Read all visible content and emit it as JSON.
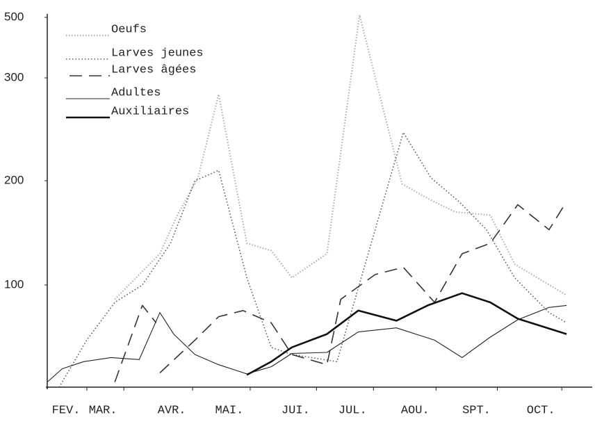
{
  "chart_data": {
    "type": "line",
    "xlim": [
      0,
      8.71
    ],
    "xticks": [
      {
        "value": 0.3,
        "label": "FEV."
      },
      {
        "value": 0.89,
        "label": "MAR."
      },
      {
        "value": 1.99,
        "label": "AVR."
      },
      {
        "value": 2.91,
        "label": "MAI."
      },
      {
        "value": 3.97,
        "label": "JUI."
      },
      {
        "value": 4.88,
        "label": "JUL."
      },
      {
        "value": 5.88,
        "label": "AOU."
      },
      {
        "value": 6.86,
        "label": "SPT."
      },
      {
        "value": 7.89,
        "label": "OCT."
      }
    ],
    "ylim": [
      0,
      510
    ],
    "yticks": [
      100,
      200,
      300,
      500
    ],
    "legend": "upper left",
    "series": [
      {
        "name": "Oeufs",
        "color": "#b0b0b0",
        "x": [
          1.08,
          1.52,
          1.8,
          2.08,
          2.41,
          2.74,
          3.19,
          3.58,
          3.91,
          4.47,
          4.99,
          5.67,
          6.08,
          6.52,
          7.08,
          7.47,
          8.3
        ],
        "values": [
          86,
          113,
          130,
          167,
          203,
          284,
          140,
          133,
          107,
          130,
          507,
          197,
          183,
          170,
          167,
          120,
          90
        ]
      },
      {
        "name": "Larves jeunes",
        "color": "#555555",
        "x": [
          0.19,
          0.63,
          1.08,
          1.52,
          1.97,
          2.36,
          2.74,
          3.19,
          3.58,
          3.91,
          4.63,
          5.24,
          5.69,
          6.13,
          6.58,
          7.02,
          7.47,
          8.02,
          8.3
        ],
        "values": [
          0,
          46,
          83,
          100,
          140,
          200,
          210,
          107,
          39,
          32,
          25,
          153,
          247,
          203,
          180,
          153,
          107,
          73,
          63
        ]
      },
      {
        "name": "Larves âgées",
        "color": "#333333",
        "x": [
          1.08,
          1.52,
          1.74,
          1.77,
          1.8,
          2.36,
          2.74,
          3.13,
          3.58,
          3.91,
          4.47,
          4.69,
          5.24,
          5.69,
          6.19,
          6.63,
          7.08,
          7.52,
          8.02,
          8.3
        ],
        "values": [
          5,
          80,
          63,
          null,
          14,
          46,
          69,
          75,
          63,
          32,
          22,
          86,
          110,
          117,
          83,
          130,
          140,
          177,
          153,
          180
        ]
      },
      {
        "name": "Adultes",
        "color": "#222222",
        "x": [
          0,
          0.24,
          0.58,
          1.02,
          1.47,
          1.8,
          2.02,
          2.36,
          2.74,
          3.19,
          3.58,
          3.91,
          4.47,
          4.97,
          5.58,
          6.19,
          6.63,
          7.08,
          7.52,
          8.02,
          8.3
        ],
        "values": [
          5,
          18,
          25,
          29,
          27,
          73,
          52,
          32,
          22,
          13,
          20,
          33,
          34,
          54,
          58,
          46,
          29,
          49,
          66,
          78,
          80
        ]
      },
      {
        "name": "Auxiliaires",
        "color": "#111111",
        "x": [
          3.19,
          3.58,
          3.91,
          4.47,
          4.97,
          5.58,
          6.08,
          6.63,
          7.08,
          7.52,
          8.3
        ],
        "values": [
          12,
          25,
          39,
          52,
          75,
          65,
          80,
          92,
          83,
          67,
          52
        ]
      }
    ]
  }
}
